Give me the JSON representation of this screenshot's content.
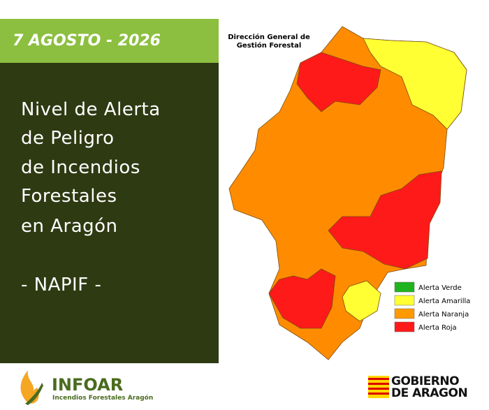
{
  "header": {
    "date": "7 AGOSTO - 2026"
  },
  "title": {
    "lines": [
      "Nivel de Alerta",
      "de Peligro",
      "de Incendios",
      "Forestales",
      "en Aragón"
    ],
    "subtitle": "- NAPIF -"
  },
  "map": {
    "source": [
      "Dirección General de",
      "Gestión Forestal"
    ],
    "legend": [
      {
        "label": "Alerta Verde",
        "color": "#1fb31f"
      },
      {
        "label": "Alerta Amarilla",
        "color": "#ffff33"
      },
      {
        "label": "Alerta Naranja",
        "color": "#ff9900"
      },
      {
        "label": "Alerta Roja",
        "color": "#ff1a1a"
      }
    ]
  },
  "footer": {
    "logo_name": "INFOAR",
    "logo_tagline": "Incendios Forestales Aragón",
    "government": [
      "GOBIERNO",
      "DE ARAGON"
    ]
  }
}
